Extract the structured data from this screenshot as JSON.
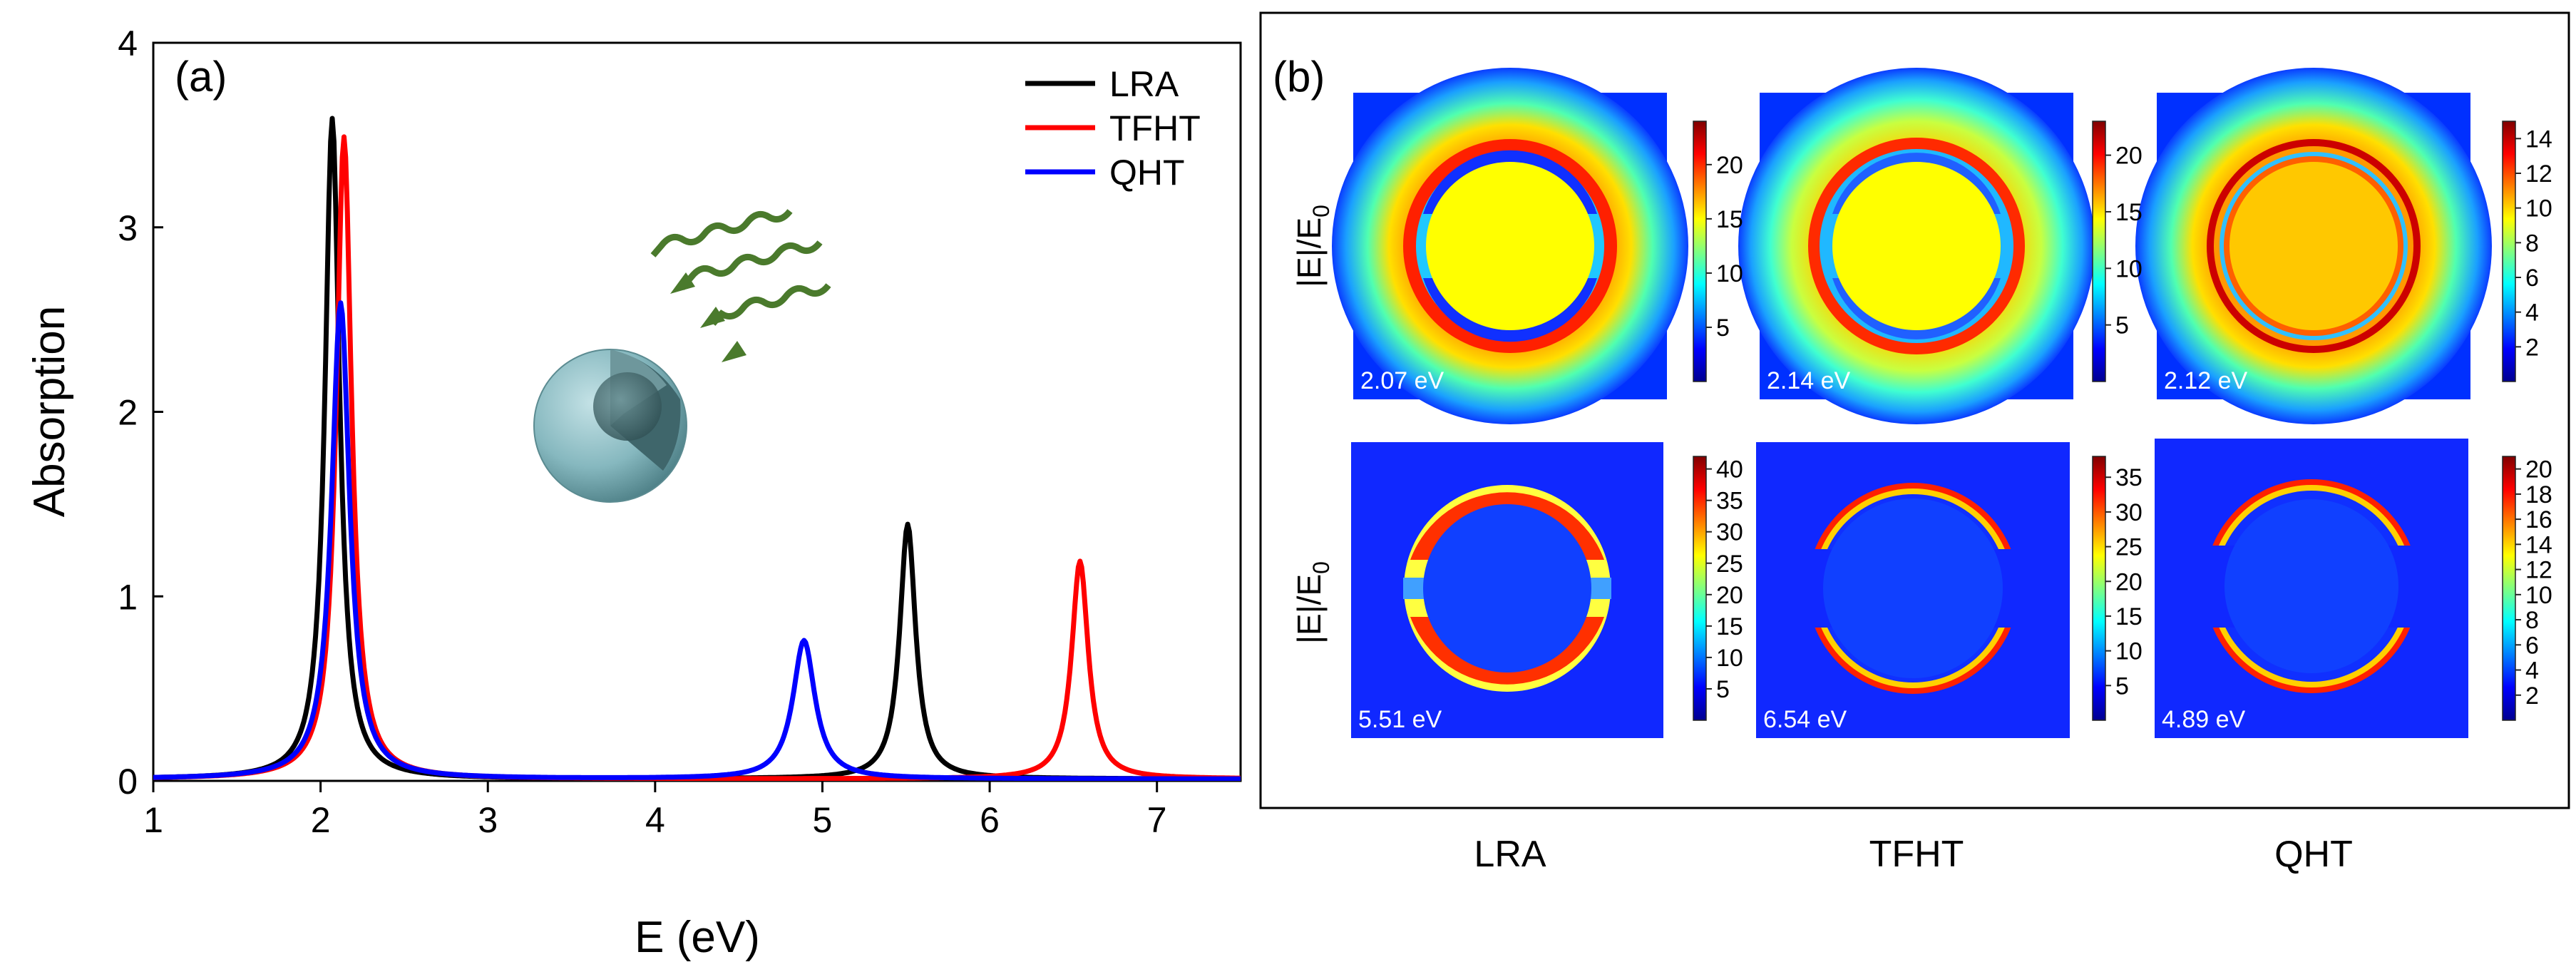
{
  "chart_data": [
    {
      "type": "line",
      "panel_label": "(a)",
      "xlabel": "E (eV)",
      "ylabel": "Absorption",
      "xlim": [
        1,
        7.5
      ],
      "ylim": [
        0,
        4
      ],
      "xticks": [
        "1",
        "2",
        "3",
        "4",
        "5",
        "6",
        "7"
      ],
      "yticks": [
        "0",
        "1",
        "2",
        "3",
        "4"
      ],
      "legend_position": "top-right",
      "series": [
        {
          "name": "LRA",
          "color": "#000000",
          "baseline": 0.01,
          "peaks": [
            {
              "center": 2.07,
              "height": 3.58,
              "width": 0.105
            },
            {
              "center": 5.51,
              "height": 1.38,
              "width": 0.115
            }
          ]
        },
        {
          "name": "TFHT",
          "color": "#ff0000",
          "baseline": 0.01,
          "peaks": [
            {
              "center": 2.14,
              "height": 3.48,
              "width": 0.11
            },
            {
              "center": 6.54,
              "height": 1.18,
              "width": 0.12
            }
          ]
        },
        {
          "name": "QHT",
          "color": "#0000ff",
          "baseline": 0.01,
          "peaks": [
            {
              "center": 2.12,
              "height": 2.58,
              "width": 0.13
            },
            {
              "center": 4.89,
              "height": 0.75,
              "width": 0.16
            }
          ]
        }
      ],
      "inset": "core-shell nanosphere illuminated by light waves"
    },
    {
      "type": "heatmap",
      "panel_label": "(b)",
      "row_ylabel": "|E|/E",
      "row_ylabel_sub": "0",
      "column_labels": [
        "LRA",
        "TFHT",
        "QHT"
      ],
      "maps": [
        {
          "method": "LRA",
          "energy": "2.07 eV",
          "colorbar_ticks": [
            "5",
            "10",
            "15",
            "20"
          ],
          "max": 24
        },
        {
          "method": "TFHT",
          "energy": "2.14 eV",
          "colorbar_ticks": [
            "5",
            "10",
            "15",
            "20"
          ],
          "max": 23
        },
        {
          "method": "QHT",
          "energy": "2.12 eV",
          "colorbar_ticks": [
            "2",
            "4",
            "6",
            "8",
            "10",
            "12",
            "14"
          ],
          "max": 15
        },
        {
          "method": "LRA",
          "energy": "5.51 eV",
          "colorbar_ticks": [
            "5",
            "10",
            "15",
            "20",
            "25",
            "30",
            "35",
            "40"
          ],
          "max": 42
        },
        {
          "method": "TFHT",
          "energy": "6.54 eV",
          "colorbar_ticks": [
            "5",
            "10",
            "15",
            "20",
            "25",
            "30",
            "35"
          ],
          "max": 38
        },
        {
          "method": "QHT",
          "energy": "4.89 eV",
          "colorbar_ticks": [
            "2",
            "4",
            "6",
            "8",
            "10",
            "12",
            "14",
            "16",
            "18",
            "20"
          ],
          "max": 21
        }
      ]
    }
  ]
}
